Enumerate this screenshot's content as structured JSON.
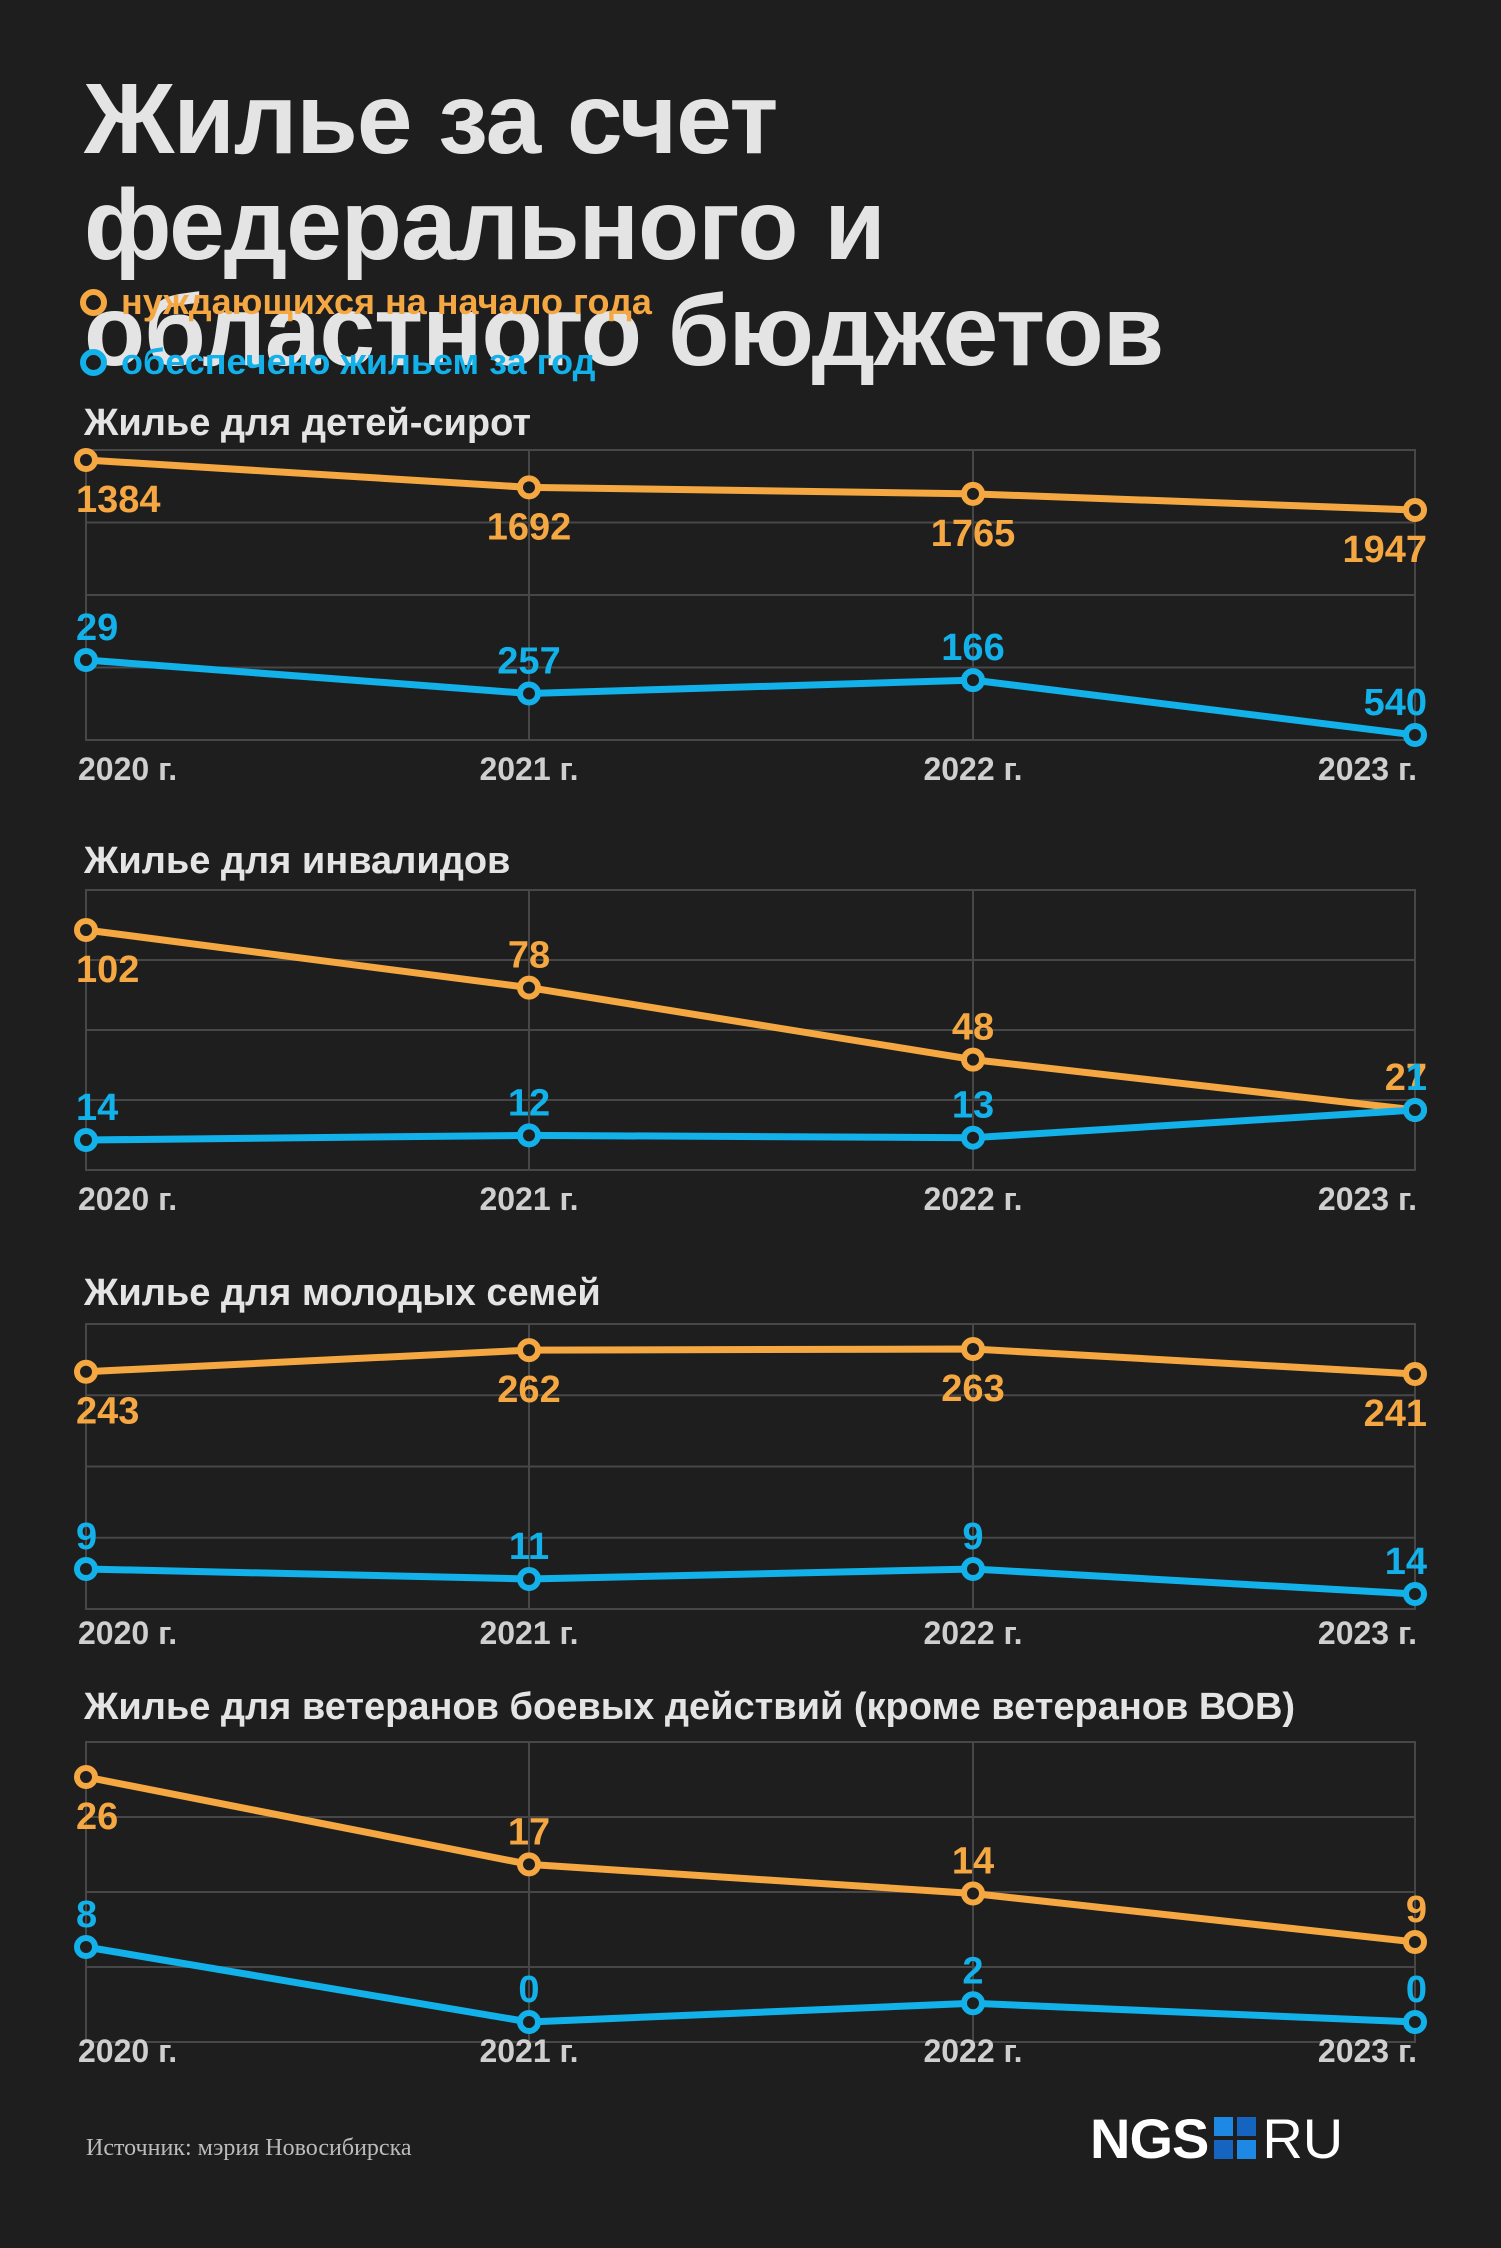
{
  "title": "Жилье за счет федерального и областного бюджетов",
  "legend": {
    "needing": "нуждающихся на начало года",
    "provided": "обеспечено жильем за год"
  },
  "colors": {
    "background": "#1e1e1e",
    "needing": "#f5a742",
    "provided": "#12b1ea",
    "grid": "#474747"
  },
  "source": "Источник: мэрия Новосибирска",
  "logo": {
    "brand": "NGS",
    "domain": "RU"
  },
  "chart_data": [
    {
      "type": "line",
      "title": "Жилье для детей-сирот",
      "categories": [
        "2020 г.",
        "2021 г.",
        "2022 г.",
        "2023 г."
      ],
      "series": [
        {
          "name": "нуждающихся на начало года",
          "values": [
            1384,
            1692,
            1765,
            1947
          ]
        },
        {
          "name": "обеспечено жильем за год",
          "values": [
            29,
            257,
            166,
            540
          ]
        }
      ]
    },
    {
      "type": "line",
      "title": "Жилье для инвалидов",
      "categories": [
        "2020 г.",
        "2021 г.",
        "2022 г.",
        "2023 г."
      ],
      "series": [
        {
          "name": "нуждающихся на начало года",
          "values": [
            102,
            78,
            48,
            27
          ]
        },
        {
          "name": "обеспечено жильем за год",
          "values": [
            14,
            12,
            13,
            1
          ]
        }
      ]
    },
    {
      "type": "line",
      "title": "Жилье для молодых семей",
      "categories": [
        "2020 г.",
        "2021 г.",
        "2022 г.",
        "2023 г."
      ],
      "series": [
        {
          "name": "нуждающихся на начало года",
          "values": [
            243,
            262,
            263,
            241
          ]
        },
        {
          "name": "обеспечено жильем за год",
          "values": [
            9,
            11,
            9,
            14
          ]
        }
      ]
    },
    {
      "type": "line",
      "title": "Жилье для ветеранов боевых действий (кроме ветеранов ВОВ)",
      "categories": [
        "2020 г.",
        "2021 г.",
        "2022 г.",
        "2023 г."
      ],
      "series": [
        {
          "name": "нуждающихся на начало года",
          "values": [
            26,
            17,
            14,
            9
          ]
        },
        {
          "name": "обеспечено жильем за год",
          "values": [
            8,
            0,
            2,
            0
          ]
        }
      ]
    }
  ]
}
